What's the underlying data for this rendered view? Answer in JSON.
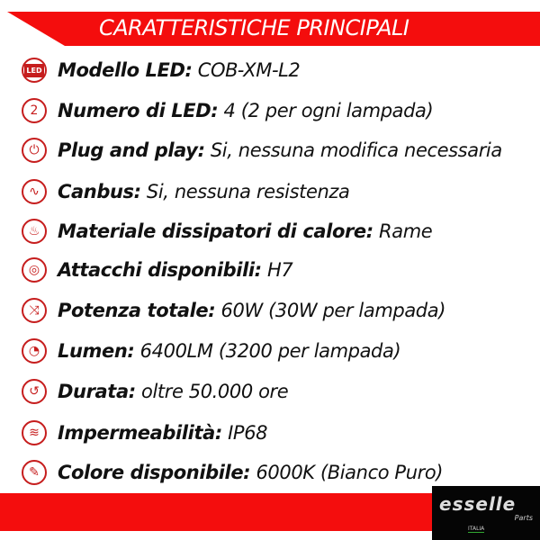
{
  "header": {
    "title": "CARATTERISTICHE PRINCIPALI"
  },
  "colors": {
    "accent": "#f40d0d",
    "icon": "#c61d1d"
  },
  "features": [
    {
      "icon": "led-icon",
      "label": "Modello LED:",
      "value": " COB-XM-L2",
      "glyph": "LED"
    },
    {
      "icon": "number-two-icon",
      "label": "Numero di LED:",
      "value": " 4 (2 per ogni lampada)",
      "glyph": "2"
    },
    {
      "icon": "plug-icon",
      "label": "Plug and play:",
      "value": " Si, nessuna modifica necessaria",
      "glyph": "⏻"
    },
    {
      "icon": "resistor-icon",
      "label": "Canbus:",
      "value": " Si, nessuna resistenza",
      "glyph": "∿"
    },
    {
      "icon": "heat-icon",
      "label": "Materiale dissipatori di calore:",
      "value": " Rame",
      "glyph": "♨"
    },
    {
      "icon": "socket-icon",
      "label": "Attacchi disponibili:",
      "value": " H7",
      "glyph": "◎"
    },
    {
      "icon": "power-icon",
      "label": "Potenza totale:",
      "value": " 60W (30W per lampada)",
      "glyph": "⤨"
    },
    {
      "icon": "gauge-icon",
      "label": "Lumen:",
      "value": " 6400LM (3200 per lampada)",
      "glyph": "◔"
    },
    {
      "icon": "clock-icon",
      "label": "Durata:",
      "value": " oltre 50.000 ore",
      "glyph": "↺"
    },
    {
      "icon": "water-icon",
      "label": "Impermeabilità:",
      "value": " IP68",
      "glyph": "≋"
    },
    {
      "icon": "brush-icon",
      "label": "Colore disponibile:",
      "value": " 6000K (Bianco Puro)",
      "glyph": "✎"
    }
  ],
  "logo": {
    "name": "esselle",
    "sub": "Parts",
    "country": "ITALIA"
  }
}
